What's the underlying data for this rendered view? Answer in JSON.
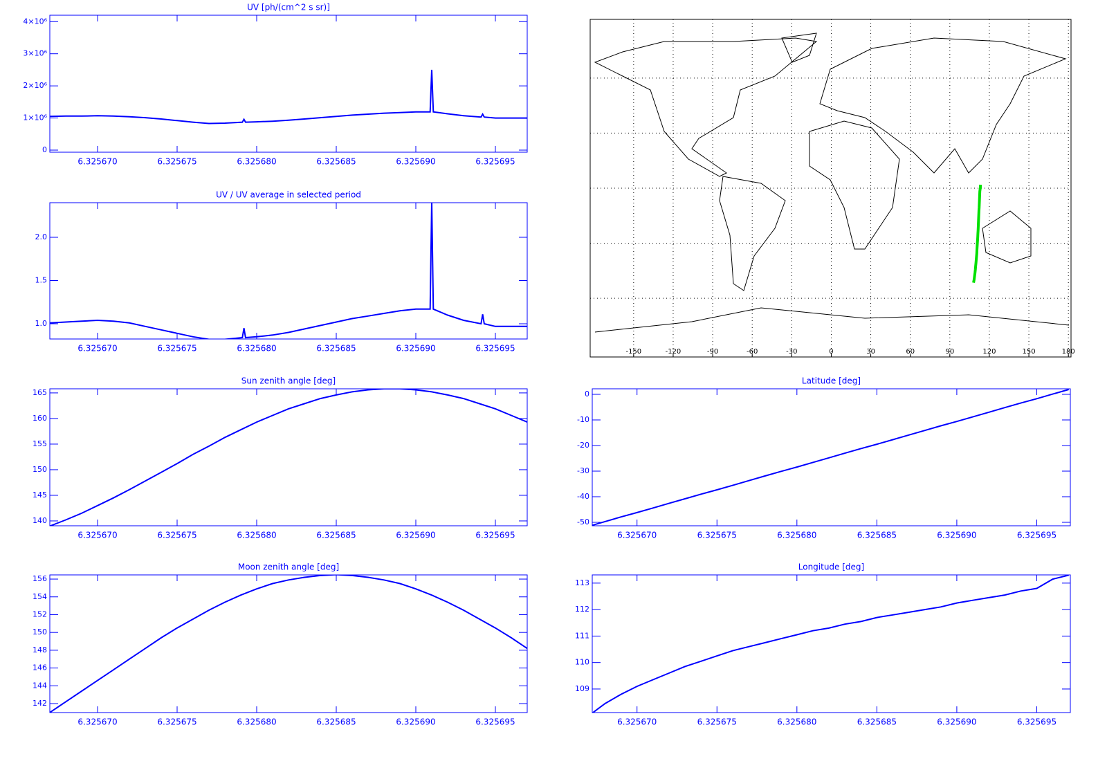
{
  "chart_data": [
    {
      "type": "line",
      "title": "UV [ph/(cm^2 s sr)]",
      "color": "#0000ff",
      "x": [
        6.325667,
        6.325668,
        6.325669,
        6.32567,
        6.325671,
        6.325672,
        6.325673,
        6.325674,
        6.325675,
        6.325676,
        6.325677,
        6.325678,
        6.3256791,
        6.3256792,
        6.3256793,
        6.32568,
        6.325681,
        6.325682,
        6.325683,
        6.325684,
        6.325685,
        6.325686,
        6.325687,
        6.325688,
        6.325689,
        6.32569,
        6.3256909,
        6.325691,
        6.3256911,
        6.325692,
        6.325693,
        6.3256941,
        6.3256942,
        6.3256943,
        6.325695,
        6.325696,
        6.325697
      ],
      "values": [
        1050000,
        1060000,
        1060000,
        1070000,
        1060000,
        1040000,
        1010000,
        970000,
        920000,
        870000,
        830000,
        840000,
        870000,
        960000,
        870000,
        880000,
        900000,
        930000,
        970000,
        1010000,
        1050000,
        1090000,
        1120000,
        1150000,
        1170000,
        1190000,
        1190000,
        2500000,
        1190000,
        1130000,
        1070000,
        1030000,
        1120000,
        1030000,
        1000000,
        1000000,
        1000000
      ],
      "xlim": [
        6.325667,
        6.325697
      ],
      "ylim": [
        -65000,
        4200000
      ],
      "xticks": [
        {
          "value": 6.32567,
          "label": "6.325670"
        },
        {
          "value": 6.325675,
          "label": "6.325675"
        },
        {
          "value": 6.32568,
          "label": "6.325680"
        },
        {
          "value": 6.325685,
          "label": "6.325685"
        },
        {
          "value": 6.32569,
          "label": "6.325690"
        },
        {
          "value": 6.325695,
          "label": "6.325695"
        }
      ],
      "yticks": [
        0,
        {
          "value": 1000000,
          "label": "1×10⁶"
        },
        {
          "value": 2000000,
          "label": "2×10⁶"
        },
        {
          "value": 3000000,
          "label": "3×10⁶"
        },
        {
          "value": 4000000,
          "label": "4×10⁶"
        }
      ]
    },
    {
      "type": "line",
      "title": "UV / UV average in selected period",
      "color": "#0000ff",
      "x": [
        6.325667,
        6.325668,
        6.325669,
        6.32567,
        6.325671,
        6.325672,
        6.325673,
        6.325674,
        6.325675,
        6.325676,
        6.325677,
        6.325678,
        6.3256791,
        6.3256792,
        6.3256793,
        6.32568,
        6.325681,
        6.325682,
        6.325683,
        6.325684,
        6.325685,
        6.325686,
        6.325687,
        6.325688,
        6.325689,
        6.32569,
        6.3256909,
        6.325691,
        6.3256911,
        6.325692,
        6.325693,
        6.3256941,
        6.3256942,
        6.3256943,
        6.325695,
        6.325696,
        6.325697
      ],
      "values": [
        1.01,
        1.02,
        1.03,
        1.04,
        1.03,
        1.01,
        0.97,
        0.93,
        0.89,
        0.85,
        0.82,
        0.82,
        0.84,
        0.95,
        0.84,
        0.85,
        0.87,
        0.9,
        0.94,
        0.98,
        1.02,
        1.06,
        1.09,
        1.12,
        1.15,
        1.17,
        1.17,
        2.42,
        1.17,
        1.1,
        1.04,
        1.0,
        1.11,
        1.0,
        0.97,
        0.97,
        0.97
      ],
      "xlim": [
        6.325667,
        6.325697
      ],
      "ylim": [
        0.824,
        2.4
      ],
      "xticks": [
        {
          "value": 6.32567,
          "label": "6.325670"
        },
        {
          "value": 6.325675,
          "label": "6.325675"
        },
        {
          "value": 6.32568,
          "label": "6.325680"
        },
        {
          "value": 6.325685,
          "label": "6.325685"
        },
        {
          "value": 6.32569,
          "label": "6.325690"
        },
        {
          "value": 6.325695,
          "label": "6.325695"
        }
      ],
      "yticks": [
        {
          "value": 1,
          "label": "1.0"
        },
        {
          "value": 1.5,
          "label": "1.5"
        },
        {
          "value": 2,
          "label": "2.0"
        }
      ]
    },
    {
      "type": "map",
      "track_color": "#00e000",
      "xlim": [
        -183,
        182
      ],
      "ylim": [
        -92,
        92
      ],
      "xticks": [
        -150,
        -120,
        -90,
        -60,
        -30,
        0,
        30,
        60,
        90,
        120,
        150,
        180
      ],
      "yticks": [
        -60,
        -30,
        0,
        30,
        60
      ]
    },
    {
      "type": "line",
      "title": "Sun zenith angle [deg]",
      "color": "#0000ff",
      "x": [
        6.325667,
        6.325668,
        6.325669,
        6.32567,
        6.325671,
        6.325672,
        6.325673,
        6.325674,
        6.325675,
        6.325676,
        6.325677,
        6.325678,
        6.325679,
        6.32568,
        6.325681,
        6.325682,
        6.325683,
        6.325684,
        6.325685,
        6.325686,
        6.325687,
        6.325688,
        6.325689,
        6.32569,
        6.325691,
        6.325692,
        6.325693,
        6.325694,
        6.325695,
        6.325696,
        6.325697
      ],
      "values": [
        139.0,
        140.2,
        141.5,
        143.0,
        144.5,
        146.1,
        147.8,
        149.5,
        151.2,
        153.0,
        154.6,
        156.3,
        157.8,
        159.3,
        160.6,
        161.9,
        162.9,
        163.9,
        164.6,
        165.2,
        165.6,
        165.8,
        165.8,
        165.6,
        165.2,
        164.6,
        163.9,
        162.9,
        161.9,
        160.6,
        159.3
      ],
      "xlim": [
        6.325667,
        6.325697
      ],
      "ylim": [
        139.05,
        165.8
      ],
      "xticks": [
        {
          "value": 6.32567,
          "label": "6.325670"
        },
        {
          "value": 6.325675,
          "label": "6.325675"
        },
        {
          "value": 6.32568,
          "label": "6.325680"
        },
        {
          "value": 6.325685,
          "label": "6.325685"
        },
        {
          "value": 6.32569,
          "label": "6.325690"
        },
        {
          "value": 6.325695,
          "label": "6.325695"
        }
      ],
      "yticks": [
        140,
        145,
        150,
        155,
        160,
        165
      ]
    },
    {
      "type": "line",
      "title": "Latitude [deg]",
      "color": "#0000ff",
      "x": [
        6.325667,
        6.325668,
        6.325669,
        6.32567,
        6.325671,
        6.325672,
        6.325673,
        6.325674,
        6.325675,
        6.325676,
        6.325677,
        6.325678,
        6.325679,
        6.32568,
        6.325681,
        6.325682,
        6.325683,
        6.325684,
        6.325685,
        6.325686,
        6.325687,
        6.325688,
        6.325689,
        6.32569,
        6.325691,
        6.325692,
        6.325693,
        6.325694,
        6.325695,
        6.325696,
        6.325697
      ],
      "values": [
        -51.5,
        -49.7,
        -47.9,
        -46.2,
        -44.4,
        -42.6,
        -40.8,
        -39.0,
        -37.3,
        -35.5,
        -33.7,
        -31.9,
        -30.1,
        -28.4,
        -26.6,
        -24.8,
        -23.0,
        -21.2,
        -19.5,
        -17.7,
        -15.9,
        -14.1,
        -12.3,
        -10.6,
        -8.8,
        -7.0,
        -5.2,
        -3.4,
        -1.7,
        0.1,
        1.9
      ],
      "xlim": [
        6.3256672,
        6.3256971
      ],
      "ylim": [
        -51.35,
        2.16
      ],
      "xticks": [
        {
          "value": 6.32567,
          "label": "6.325670"
        },
        {
          "value": 6.325675,
          "label": "6.325675"
        },
        {
          "value": 6.32568,
          "label": "6.325680"
        },
        {
          "value": 6.325685,
          "label": "6.325685"
        },
        {
          "value": 6.32569,
          "label": "6.325690"
        },
        {
          "value": 6.325695,
          "label": "6.325695"
        }
      ],
      "yticks": [
        -50,
        -40,
        -30,
        -20,
        -10,
        0
      ]
    },
    {
      "type": "line",
      "title": "Moon zenith angle [deg]",
      "color": "#0000ff",
      "x": [
        6.325667,
        6.325668,
        6.325669,
        6.32567,
        6.325671,
        6.325672,
        6.325673,
        6.325674,
        6.325675,
        6.325676,
        6.325677,
        6.325678,
        6.325679,
        6.32568,
        6.325681,
        6.325682,
        6.325683,
        6.325684,
        6.325685,
        6.325686,
        6.325687,
        6.325688,
        6.325689,
        6.32569,
        6.325691,
        6.325692,
        6.325693,
        6.325694,
        6.325695,
        6.325696,
        6.325697
      ],
      "values": [
        141.0,
        142.2,
        143.4,
        144.6,
        145.8,
        147.0,
        148.2,
        149.4,
        150.5,
        151.5,
        152.5,
        153.4,
        154.2,
        154.9,
        155.5,
        155.9,
        156.2,
        156.4,
        156.5,
        156.4,
        156.2,
        155.9,
        155.5,
        154.9,
        154.2,
        153.4,
        152.5,
        151.5,
        150.5,
        149.4,
        148.2
      ],
      "xlim": [
        6.325667,
        6.325697
      ],
      "ylim": [
        140.99,
        156.47
      ],
      "xticks": [
        {
          "value": 6.32567,
          "label": "6.325670"
        },
        {
          "value": 6.325675,
          "label": "6.325675"
        },
        {
          "value": 6.32568,
          "label": "6.325680"
        },
        {
          "value": 6.325685,
          "label": "6.325685"
        },
        {
          "value": 6.32569,
          "label": "6.325690"
        },
        {
          "value": 6.325695,
          "label": "6.325695"
        }
      ],
      "yticks": [
        142,
        144,
        146,
        148,
        150,
        152,
        154,
        156
      ]
    },
    {
      "type": "line",
      "title": "Longitude [deg]",
      "color": "#0000ff",
      "x": [
        6.325667,
        6.325668,
        6.325669,
        6.32567,
        6.325671,
        6.325672,
        6.325673,
        6.325674,
        6.325675,
        6.325676,
        6.325677,
        6.325678,
        6.325679,
        6.32568,
        6.325681,
        6.325682,
        6.325683,
        6.325684,
        6.325685,
        6.325686,
        6.325687,
        6.325688,
        6.325689,
        6.32569,
        6.325691,
        6.325692,
        6.325693,
        6.325694,
        6.325695,
        6.325696,
        6.325697
      ],
      "values": [
        108.0,
        108.45,
        108.8,
        109.1,
        109.35,
        109.6,
        109.85,
        110.05,
        110.25,
        110.45,
        110.6,
        110.75,
        110.9,
        111.05,
        111.2,
        111.3,
        111.45,
        111.55,
        111.7,
        111.8,
        111.9,
        112.0,
        112.1,
        112.25,
        112.35,
        112.45,
        112.55,
        112.7,
        112.8,
        113.15,
        113.3
      ],
      "xlim": [
        6.3256672,
        6.3256971
      ],
      "ylim": [
        108.11,
        113.31
      ],
      "xticks": [
        {
          "value": 6.32567,
          "label": "6.325670"
        },
        {
          "value": 6.325675,
          "label": "6.325675"
        },
        {
          "value": 6.32568,
          "label": "6.325680"
        },
        {
          "value": 6.325685,
          "label": "6.325685"
        },
        {
          "value": 6.32569,
          "label": "6.325690"
        },
        {
          "value": 6.325695,
          "label": "6.325695"
        }
      ],
      "yticks": [
        109,
        110,
        111,
        112,
        113
      ]
    }
  ]
}
